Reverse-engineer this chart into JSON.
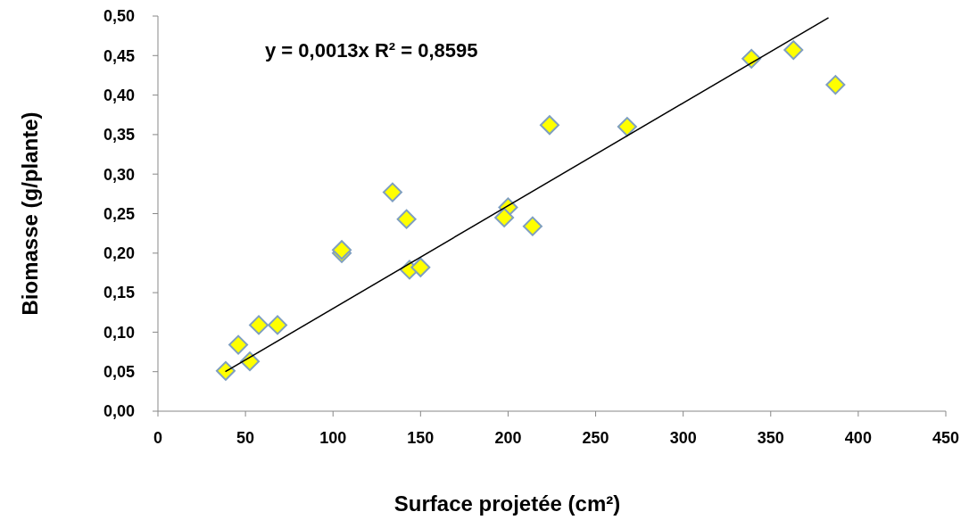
{
  "chart_data": {
    "type": "scatter",
    "xlabel": "Surface projetée (cm²)",
    "ylabel": "Biomasse (g/plante)",
    "annotations": [
      "y = 0,0013x R² = 0,8595"
    ],
    "xlim": [
      0,
      450
    ],
    "xticks": [
      0,
      50,
      100,
      150,
      200,
      250,
      300,
      350,
      400,
      450
    ],
    "ylim": [
      0,
      0.5
    ],
    "yticks": [
      {
        "value": 0,
        "label": "0,00"
      },
      {
        "value": 0.05,
        "label": "0,05"
      },
      {
        "value": 0.1,
        "label": "0,10"
      },
      {
        "value": 0.15,
        "label": "0,15"
      },
      {
        "value": 0.2,
        "label": "0,20"
      },
      {
        "value": 0.25,
        "label": "0,25"
      },
      {
        "value": 0.3,
        "label": "0,30"
      },
      {
        "value": 0.35,
        "label": "0,35"
      },
      {
        "value": 0.4,
        "label": "0,40"
      },
      {
        "value": 0.45,
        "label": "0,45"
      },
      {
        "value": 0.5,
        "label": "0,50"
      }
    ],
    "grid": false,
    "marker": "diamond",
    "series": [
      {
        "color": "#ffff00",
        "x": [
          38.7,
          45.9,
          52.5,
          57.6,
          68.3,
          105,
          105,
          134,
          142,
          143.7,
          150,
          200,
          197.8,
          214,
          223.7,
          268,
          339,
          363,
          387
        ],
        "values": [
          0.051,
          0.084,
          0.063,
          0.109,
          0.109,
          0.2,
          0.204,
          0.277,
          0.243,
          0.179,
          0.182,
          0.258,
          0.245,
          0.234,
          0.362,
          0.36,
          0.446,
          0.457,
          0.413
        ]
      },
      {
        "type": "line",
        "color": "#000000",
        "marker": "none",
        "line_style": "solid",
        "x": [
          38.5,
          383
        ],
        "values": [
          0.05,
          0.498
        ]
      }
    ]
  }
}
